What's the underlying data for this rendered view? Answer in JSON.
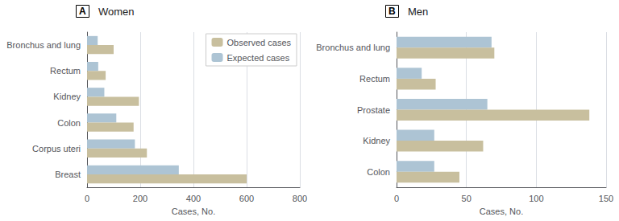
{
  "chart_data": [
    {
      "type": "bar",
      "orientation": "horizontal",
      "title": "Women",
      "annotations": [
        "A"
      ],
      "categories": [
        "Breast",
        "Corpus uteri",
        "Colon",
        "Kidney",
        "Rectum",
        "Bronchus and lung"
      ],
      "series": [
        {
          "name": "Observed cases",
          "color": "#c8bf9e",
          "values": [
            600,
            225,
            175,
            195,
            70,
            100
          ]
        },
        {
          "name": "Expected cases",
          "color": "#adc4d4",
          "values": [
            345,
            180,
            110,
            65,
            42,
            40
          ]
        }
      ],
      "xlim": [
        0,
        800
      ],
      "xticks": [
        0,
        200,
        400,
        600,
        800
      ],
      "xlabel": "Cases, No.",
      "grid": true,
      "legend": "upper right"
    },
    {
      "type": "bar",
      "orientation": "horizontal",
      "title": "Men",
      "annotations": [
        "B"
      ],
      "categories": [
        "Colon",
        "Kidney",
        "Prostate",
        "Rectum",
        "Bronchus and lung"
      ],
      "series": [
        {
          "name": "Observed cases",
          "color": "#c8bf9e",
          "values": [
            45,
            62,
            138,
            28,
            70
          ]
        },
        {
          "name": "Expected cases",
          "color": "#adc4d4",
          "values": [
            27,
            27,
            65,
            18,
            68
          ]
        }
      ],
      "xlim": [
        0,
        150
      ],
      "xticks": [
        0,
        50,
        100,
        150
      ],
      "xlabel": "Cases, No.",
      "grid": true
    }
  ]
}
